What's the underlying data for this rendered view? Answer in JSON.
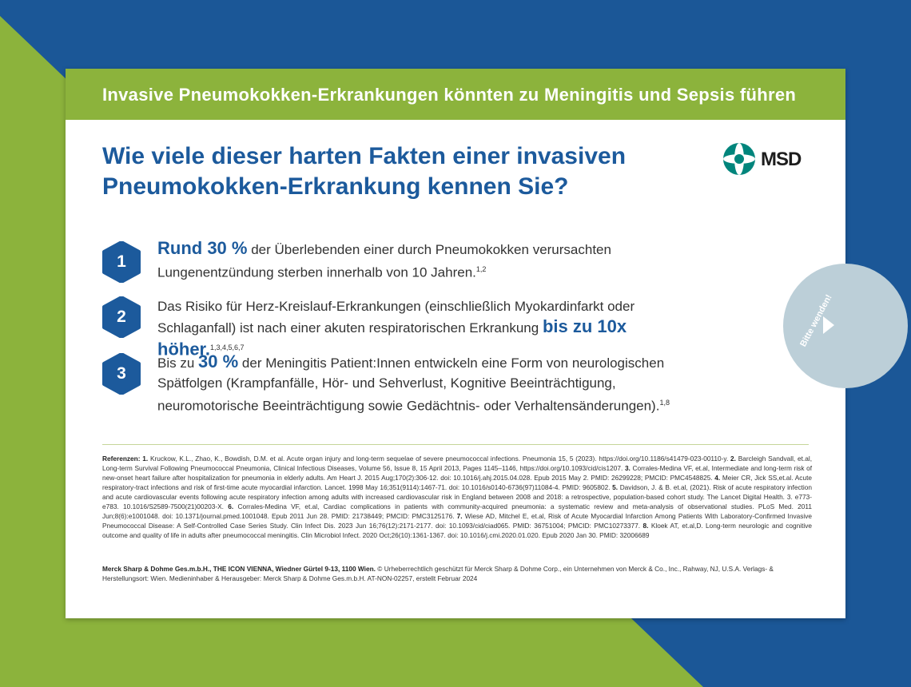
{
  "colors": {
    "background_blue": "#1b5797",
    "background_green": "#8cb33c",
    "banner_green": "#8cb33c",
    "headline_blue": "#1c5a9c",
    "badge_blue": "#1c5a9c",
    "logo_teal": "#00857c",
    "side_tab": "#bccfd8"
  },
  "banner": {
    "title": "Invasive Pneumokokken-Erkrankungen könnten zu Meningitis und Sepsis führen"
  },
  "headline": "Wie viele dieser harten Fakten einer invasiven Pneumokokken-Erkrankung kennen Sie?",
  "logo": {
    "icon": "msd-logo-icon",
    "text": "MSD"
  },
  "side_tab": {
    "label": "Bitte wenden!",
    "icon": "chevron-right-icon"
  },
  "facts": [
    {
      "number": "1",
      "highlight": "Rund 30 %",
      "text": " der Überlebenden einer durch Pneumokokken verursachten Lungenentzündung sterben innerhalb von 10 Jahren.",
      "refs": "1,2"
    },
    {
      "number": "2",
      "text": "Das Risiko für Herz-Kreislauf-Erkrankungen (einschließlich Myokardinfarkt oder Schlaganfall) ist nach einer akuten respiratorischen Erkrankung ",
      "highlight": "bis zu 10x höher.",
      "refs": "1,3,4,5,6,7"
    },
    {
      "number": "3",
      "text_before": "Bis zu ",
      "highlight": "30 %",
      "text": " der Meningitis Patient:Innen entwickeln eine Form von neurologischen Spätfolgen (Krampfanfälle, Hör- und Sehverlust, Kognitive Beeinträchtigung, neuromotorische Beeinträchtigung sowie Gedächtnis- oder Verhaltensänderungen).",
      "refs": "1,8"
    }
  ],
  "references": {
    "label": "Referenzen:",
    "items": [
      {
        "n": "1.",
        "text": "Kruckow, K.L., Zhao, K., Bowdish, D.M. et al. Acute organ injury and long-term sequelae of severe pneumococcal infections. Pneumonia 15, 5 (2023). https://doi.org/10.1186/s41479-023-00110-y."
      },
      {
        "n": "2.",
        "text": "Barcleigh Sandvall, et.al, Long-term Survival Following Pneumococcal Pneumonia, Clinical Infectious Diseases, Volume 56, Issue 8, 15 April 2013, Pages 1145–1146, https://doi.org/10.1093/cid/cis1207."
      },
      {
        "n": "3.",
        "text": "Corrales-Medina VF, et.al, Intermediate and long-term risk of new-onset heart failure after hospitalization for pneumonia in elderly adults. Am Heart J. 2015 Aug;170(2):306-12. doi: 10.1016/j.ahj.2015.04.028. Epub 2015 May 2. PMID: 26299228; PMCID: PMC4548825."
      },
      {
        "n": "4.",
        "text": "Meier CR, Jick SS,et.al. Acute respiratory-tract infections and risk of first-time acute myocardial infarction. Lancet. 1998 May 16;351(9114):1467-71. doi: 10.1016/s0140-6736(97)11084-4. PMID: 9605802."
      },
      {
        "n": "5.",
        "text": "Davidson, J. & B. et.al, (2021). Risk of acute respiratory infection and acute cardiovascular events following acute respiratory infection among adults with increased cardiovascular risk in England between 2008 and 2018: a retrospective, population-based cohort study. The Lancet Digital Health. 3. e773-e783. 10.1016/S2589-7500(21)00203-X."
      },
      {
        "n": "6.",
        "text": "Corrales-Medina VF, et.al, Cardiac complications in patients with community-acquired pneumonia: a systematic review and meta-analysis of observational studies. PLoS Med. 2011 Jun;8(6):e1001048. doi: 10.1371/journal.pmed.1001048. Epub 2011 Jun 28. PMID: 21738449; PMCID: PMC3125176."
      },
      {
        "n": "7.",
        "text": "Wiese AD, Mitchel E, et.al, Risk of Acute Myocardial Infarction Among Patients With Laboratory-Confirmed Invasive Pneumococcal Disease: A Self-Controlled Case Series Study. Clin Infect Dis. 2023 Jun 16;76(12):2171-2177. doi: 10.1093/cid/ciad065. PMID: 36751004; PMCID: PMC10273377."
      },
      {
        "n": "8.",
        "text": "Kloek AT, et.al,D. Long-term neurologic and cognitive outcome and quality of life in adults after pneumococcal meningitis. Clin Microbiol Infect. 2020 Oct;26(10):1361-1367. doi: 10.1016/j.cmi.2020.01.020. Epub 2020 Jan 30. PMID: 32006689"
      }
    ]
  },
  "footer": {
    "company": "Merck Sharp & Dohme Ges.m.b.H., THE ICON VIENNA, Wiedner Gürtel 9-13, 1100 Wien.",
    "copyright": " © Urheberrechtlich geschützt für Merck Sharp & Dohme Corp., ein Unternehmen von Merck & Co., Inc., Rahway, NJ, U.S.A. Verlags- & Herstellungsort: Wien. Medieninhaber & Herausgeber: Merck Sharp & Dohme Ges.m.b.H. AT-NON-02257, erstellt Februar 2024"
  }
}
